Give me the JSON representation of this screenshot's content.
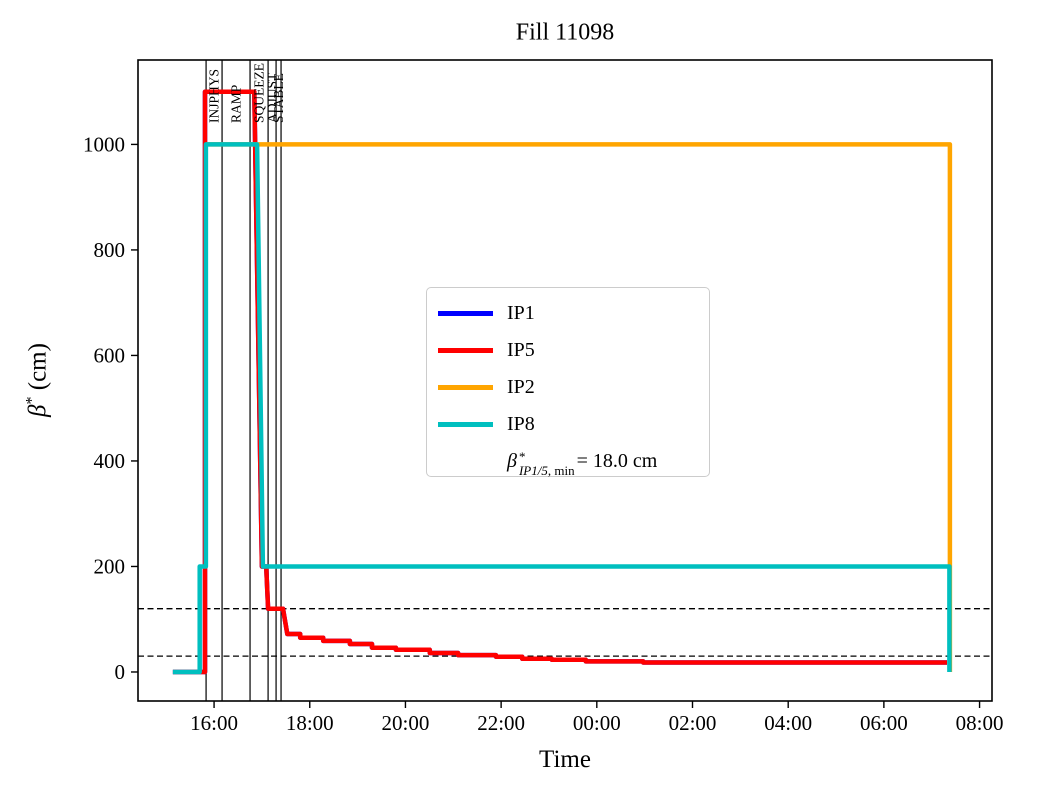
{
  "title": "Fill 11098",
  "axes": {
    "x_label": "Time",
    "y_label_beta": "β",
    "y_label_sup": "*",
    "y_label_unit": " (cm)"
  },
  "legend": {
    "items": [
      {
        "label": "IP1",
        "color": "#0000ff"
      },
      {
        "label": "IP5",
        "color": "#ff0000"
      },
      {
        "label": "IP2",
        "color": "#ffa500"
      },
      {
        "label": "IP8",
        "color": "#00bfbf"
      }
    ],
    "annotation": {
      "beta": "β",
      "sup": "*",
      "sub_italic": "IP1/5",
      "sub_rest": ", min",
      "rest": " = 18.0 cm"
    }
  },
  "chart_data": {
    "type": "line",
    "title": "Fill 11098",
    "xlabel": "Time",
    "ylabel": "β* (cm)",
    "x_unit": "hours relative to 16:00 (first day); ticks every 2 h through 08:00 next day",
    "xlim": [
      -1.59,
      16.26
    ],
    "ylim": [
      -55,
      1160
    ],
    "grid": false,
    "legend_position": "center",
    "x_ticks": [
      {
        "h": 0,
        "label": "16:00"
      },
      {
        "h": 2,
        "label": "18:00"
      },
      {
        "h": 4,
        "label": "20:00"
      },
      {
        "h": 6,
        "label": "22:00"
      },
      {
        "h": 8,
        "label": "00:00"
      },
      {
        "h": 10,
        "label": "02:00"
      },
      {
        "h": 12,
        "label": "04:00"
      },
      {
        "h": 14,
        "label": "06:00"
      },
      {
        "h": 16,
        "label": "08:00"
      }
    ],
    "y_ticks": [
      {
        "v": 0,
        "label": "0"
      },
      {
        "v": 200,
        "label": "200"
      },
      {
        "v": 400,
        "label": "400"
      },
      {
        "v": 600,
        "label": "600"
      },
      {
        "v": 800,
        "label": "800"
      },
      {
        "v": 1000,
        "label": "1000"
      }
    ],
    "dashed_hlines": [
      120,
      30
    ],
    "beam_mode_lines": [
      -0.167,
      0.167,
      0.752,
      1.129,
      1.296,
      1.4
    ],
    "beam_mode_labels": [
      {
        "h": 0.0,
        "label": "INJPHYS"
      },
      {
        "h": 0.46,
        "label": "RAMP"
      },
      {
        "h": 0.94,
        "label": "SQUEEZE"
      },
      {
        "h": 1.21,
        "label": "ADJUST"
      },
      {
        "h": 1.35,
        "label": "STABLE"
      }
    ],
    "series": [
      {
        "name": "IP1",
        "color": "#0000ff",
        "points": [
          [
            -0.86,
            0
          ],
          [
            -0.19,
            0
          ],
          [
            -0.19,
            1100
          ],
          [
            0.84,
            1100
          ],
          [
            1.0,
            200
          ],
          [
            1.09,
            200
          ],
          [
            1.13,
            120
          ],
          [
            1.44,
            120
          ],
          [
            1.53,
            72
          ],
          [
            1.8,
            72
          ],
          [
            1.8,
            65
          ],
          [
            2.28,
            65
          ],
          [
            2.28,
            59
          ],
          [
            2.84,
            59
          ],
          [
            2.84,
            53
          ],
          [
            3.3,
            53
          ],
          [
            3.3,
            46
          ],
          [
            3.8,
            46
          ],
          [
            3.8,
            42
          ],
          [
            4.51,
            42
          ],
          [
            4.51,
            36
          ],
          [
            5.1,
            36
          ],
          [
            5.1,
            32
          ],
          [
            5.89,
            32
          ],
          [
            5.89,
            29
          ],
          [
            6.44,
            29
          ],
          [
            6.44,
            25
          ],
          [
            7.06,
            25
          ],
          [
            7.06,
            23
          ],
          [
            7.77,
            23
          ],
          [
            7.77,
            20
          ],
          [
            8.97,
            20
          ],
          [
            8.97,
            18
          ],
          [
            15.32,
            18
          ]
        ]
      },
      {
        "name": "IP5",
        "color": "#ff0000",
        "points": [
          [
            -0.86,
            0
          ],
          [
            -0.19,
            0
          ],
          [
            -0.19,
            1100
          ],
          [
            0.84,
            1100
          ],
          [
            1.0,
            200
          ],
          [
            1.09,
            200
          ],
          [
            1.13,
            120
          ],
          [
            1.44,
            120
          ],
          [
            1.53,
            72
          ],
          [
            1.8,
            72
          ],
          [
            1.8,
            65
          ],
          [
            2.28,
            65
          ],
          [
            2.28,
            59
          ],
          [
            2.84,
            59
          ],
          [
            2.84,
            53
          ],
          [
            3.3,
            53
          ],
          [
            3.3,
            46
          ],
          [
            3.8,
            46
          ],
          [
            3.8,
            42
          ],
          [
            4.51,
            42
          ],
          [
            4.51,
            36
          ],
          [
            5.1,
            36
          ],
          [
            5.1,
            32
          ],
          [
            5.89,
            32
          ],
          [
            5.89,
            29
          ],
          [
            6.44,
            29
          ],
          [
            6.44,
            25
          ],
          [
            7.06,
            25
          ],
          [
            7.06,
            23
          ],
          [
            7.77,
            23
          ],
          [
            7.77,
            20
          ],
          [
            8.97,
            20
          ],
          [
            8.97,
            18
          ],
          [
            15.32,
            18
          ]
        ]
      },
      {
        "name": "IP2",
        "color": "#ffa500",
        "points": [
          [
            -0.17,
            1000
          ],
          [
            15.38,
            1000
          ],
          [
            15.38,
            0
          ]
        ]
      },
      {
        "name": "IP8",
        "color": "#00bfbf",
        "points": [
          [
            -0.86,
            0
          ],
          [
            -0.3,
            0
          ],
          [
            -0.3,
            200
          ],
          [
            -0.17,
            200
          ],
          [
            -0.17,
            1000
          ],
          [
            0.9,
            1000
          ],
          [
            1.02,
            200
          ],
          [
            15.37,
            200
          ],
          [
            15.37,
            0
          ]
        ]
      }
    ],
    "annotation": "β*_IP1/5,min = 18.0 cm"
  }
}
